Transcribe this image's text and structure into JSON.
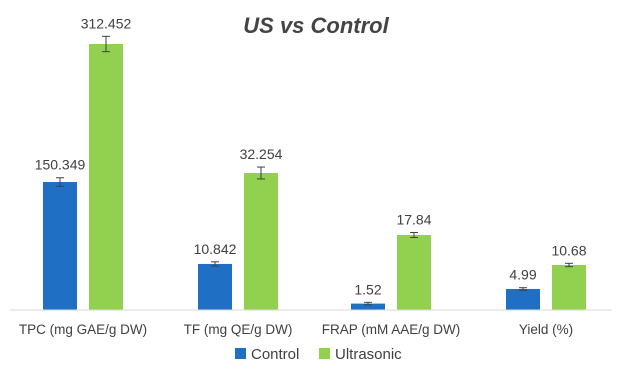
{
  "chart_data": {
    "type": "bar",
    "title": "US vs Control",
    "xlabel": "",
    "ylabel": "",
    "categories": [
      "TPC (mg GAE/g DW)",
      "TF (mg QE/g DW)",
      "FRAP (mM AAE/g DW)",
      "Yield (%)"
    ],
    "series": [
      {
        "name": "Control",
        "color": "#1f6fc5",
        "values": [
          150.349,
          10.842,
          1.52,
          4.99
        ],
        "labels": [
          "150.349",
          "10.842",
          "1.52",
          "4.99"
        ],
        "errors": [
          5.0,
          0.5,
          0.3,
          0.3
        ]
      },
      {
        "name": "Ultrasonic",
        "color": "#92d050",
        "values": [
          312.452,
          32.254,
          17.84,
          10.68
        ],
        "labels": [
          "312.452",
          "32.254",
          "17.84",
          "10.68"
        ],
        "errors": [
          9.0,
          1.4,
          0.6,
          0.4
        ]
      }
    ],
    "grid": false,
    "legend_position": "bottom",
    "error_bars": true
  }
}
